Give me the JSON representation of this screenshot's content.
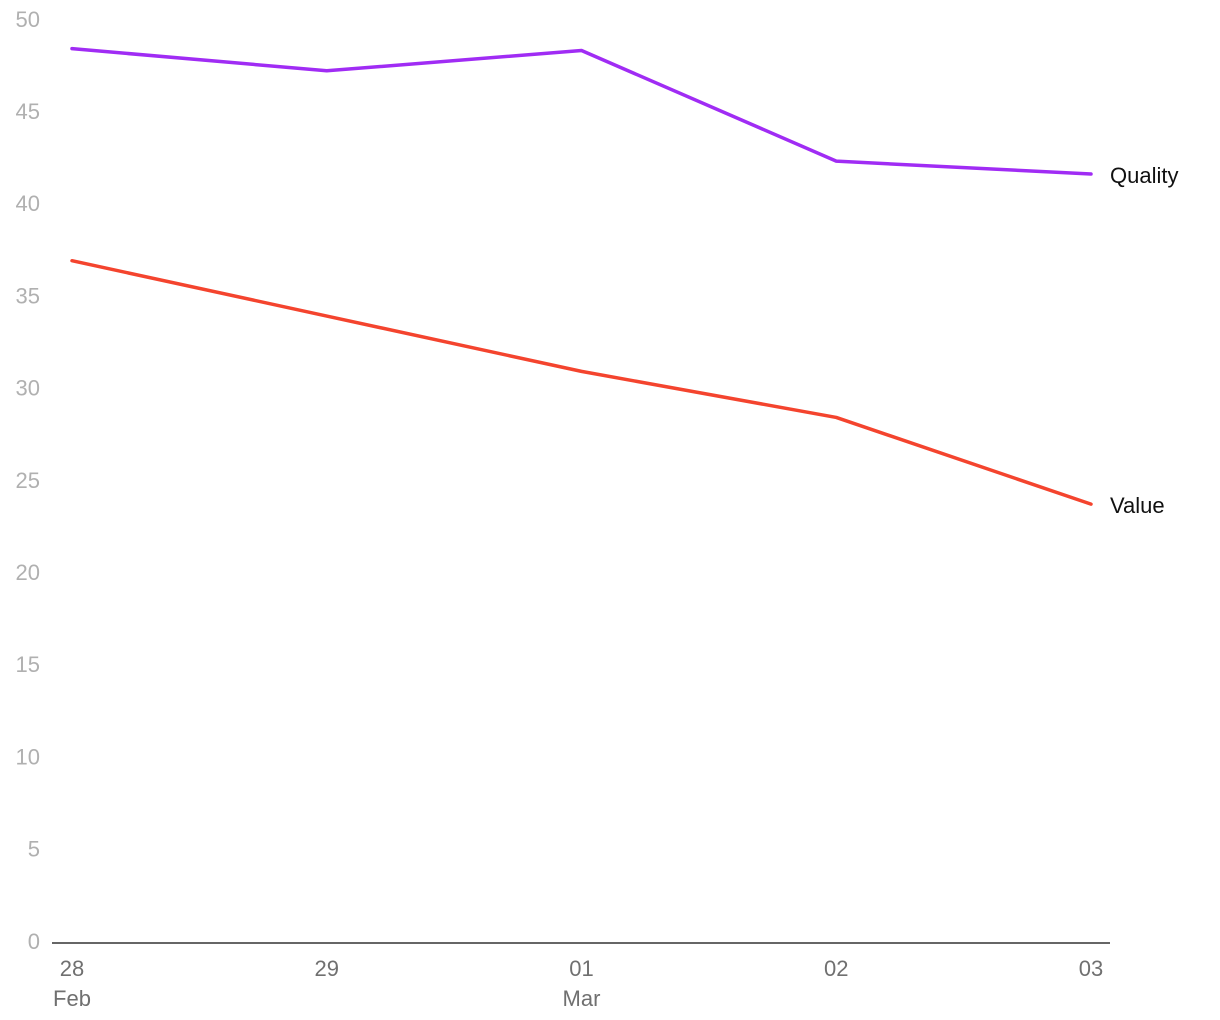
{
  "chart_data": {
    "type": "line",
    "categories": [
      "28",
      "29",
      "01",
      "02",
      "03"
    ],
    "month_labels": [
      "Feb",
      null,
      "Mar",
      null,
      null
    ],
    "series": [
      {
        "name": "Quality",
        "color": "#a02cf4",
        "values": [
          48.5,
          47.3,
          48.4,
          42.4,
          41.7
        ]
      },
      {
        "name": "Value",
        "color": "#f4442e",
        "values": [
          37,
          34,
          31,
          28.5,
          23.8
        ]
      }
    ],
    "ylim": [
      0,
      50
    ],
    "yticks": [
      0,
      5,
      10,
      15,
      20,
      25,
      30,
      35,
      40,
      45,
      50
    ],
    "grid": false,
    "legend": "line-end"
  }
}
